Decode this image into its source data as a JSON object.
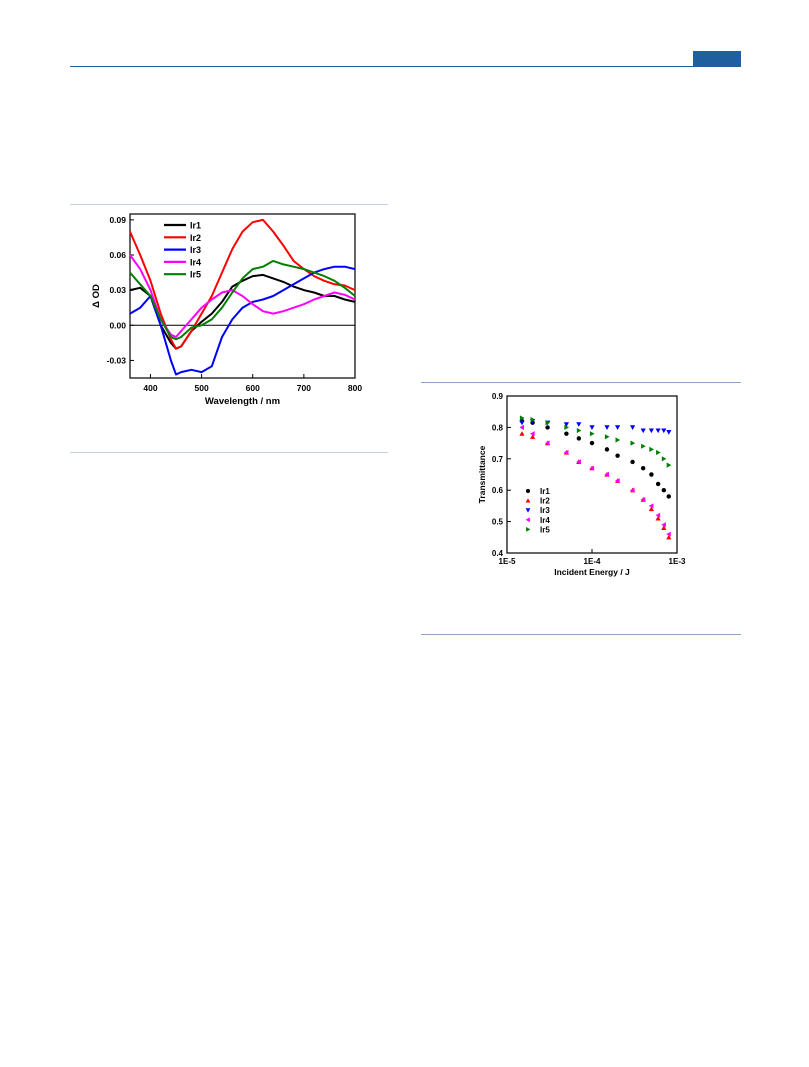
{
  "header": {
    "accent_color": "#1f5fa0"
  },
  "chart_data": [
    {
      "type": "line",
      "title": "",
      "xlabel": "Wavelength / nm",
      "ylabel": "Δ OD",
      "xlim": [
        360,
        800
      ],
      "ylim": [
        -0.045,
        0.095
      ],
      "xticks": [
        400,
        500,
        600,
        700,
        800
      ],
      "xtick_labels": [
        "400",
        "500",
        "600",
        "700",
        "800"
      ],
      "yticks": [
        -0.03,
        0.0,
        0.03,
        0.06,
        0.09
      ],
      "ytick_labels": [
        "-0.03",
        "0.00",
        "0.03",
        "0.06",
        "0.09"
      ],
      "zero_line": true,
      "grid": false,
      "legend_position": "top-left",
      "x": [
        360,
        380,
        400,
        420,
        440,
        450,
        460,
        480,
        500,
        520,
        540,
        560,
        580,
        600,
        620,
        640,
        660,
        680,
        700,
        720,
        740,
        760,
        780,
        800
      ],
      "series": [
        {
          "name": "Ir1",
          "color": "#000000",
          "values": [
            0.03,
            0.032,
            0.025,
            0.0,
            -0.015,
            -0.02,
            -0.018,
            -0.005,
            0.003,
            0.01,
            0.02,
            0.033,
            0.038,
            0.042,
            0.043,
            0.04,
            0.037,
            0.033,
            0.03,
            0.028,
            0.025,
            0.025,
            0.022,
            0.02
          ]
        },
        {
          "name": "Ir2",
          "color": "#ff0000",
          "values": [
            0.08,
            0.06,
            0.038,
            0.01,
            -0.012,
            -0.02,
            -0.018,
            -0.005,
            0.01,
            0.025,
            0.045,
            0.065,
            0.08,
            0.088,
            0.09,
            0.08,
            0.068,
            0.055,
            0.048,
            0.042,
            0.038,
            0.035,
            0.034,
            0.03
          ]
        },
        {
          "name": "Ir3",
          "color": "#0000ff",
          "values": [
            0.01,
            0.015,
            0.025,
            0.0,
            -0.03,
            -0.042,
            -0.04,
            -0.038,
            -0.04,
            -0.035,
            -0.01,
            0.005,
            0.015,
            0.02,
            0.022,
            0.025,
            0.03,
            0.035,
            0.04,
            0.045,
            0.048,
            0.05,
            0.05,
            0.048
          ]
        },
        {
          "name": "Ir4",
          "color": "#ff00ff",
          "values": [
            0.06,
            0.048,
            0.03,
            0.005,
            -0.008,
            -0.01,
            -0.005,
            0.005,
            0.015,
            0.022,
            0.028,
            0.03,
            0.025,
            0.018,
            0.012,
            0.01,
            0.012,
            0.015,
            0.018,
            0.022,
            0.025,
            0.028,
            0.026,
            0.022
          ]
        },
        {
          "name": "Ir5",
          "color": "#008000",
          "values": [
            0.045,
            0.035,
            0.025,
            0.005,
            -0.01,
            -0.012,
            -0.01,
            -0.002,
            0.0,
            0.005,
            0.015,
            0.028,
            0.04,
            0.048,
            0.05,
            0.055,
            0.052,
            0.05,
            0.048,
            0.045,
            0.042,
            0.038,
            0.032,
            0.025
          ]
        }
      ]
    },
    {
      "type": "scatter",
      "title": "",
      "xlabel": "Incident Energy / J",
      "ylabel": "Transmittance",
      "xscale": "log",
      "xlim": [
        1e-05,
        0.001
      ],
      "ylim": [
        0.4,
        0.9
      ],
      "xticks": [
        1e-05,
        0.0001,
        0.001
      ],
      "xtick_labels": [
        "1E-5",
        "1E-4",
        "1E-3"
      ],
      "yticks": [
        0.4,
        0.5,
        0.6,
        0.7,
        0.8,
        0.9
      ],
      "ytick_labels": [
        "0.4",
        "0.5",
        "0.6",
        "0.7",
        "0.8",
        "0.9"
      ],
      "grid": false,
      "legend_position": "bottom-left",
      "x": [
        1.5e-05,
        2e-05,
        3e-05,
        5e-05,
        7e-05,
        0.0001,
        0.00015,
        0.0002,
        0.0003,
        0.0004,
        0.0005,
        0.0006,
        0.0007,
        0.0008
      ],
      "series": [
        {
          "name": "Ir1",
          "color": "#000000",
          "marker": "circle",
          "values": [
            0.82,
            0.815,
            0.8,
            0.78,
            0.765,
            0.75,
            0.73,
            0.71,
            0.69,
            0.67,
            0.65,
            0.62,
            0.6,
            0.58
          ]
        },
        {
          "name": "Ir2",
          "color": "#ff0000",
          "marker": "triangle-up",
          "values": [
            0.78,
            0.77,
            0.75,
            0.72,
            0.69,
            0.67,
            0.65,
            0.63,
            0.6,
            0.57,
            0.54,
            0.51,
            0.48,
            0.45
          ]
        },
        {
          "name": "Ir3",
          "color": "#0000ff",
          "marker": "triangle-down",
          "values": [
            0.815,
            0.82,
            0.815,
            0.81,
            0.81,
            0.8,
            0.8,
            0.8,
            0.8,
            0.79,
            0.79,
            0.79,
            0.79,
            0.785
          ]
        },
        {
          "name": "Ir4",
          "color": "#ff00ff",
          "marker": "triangle-left",
          "values": [
            0.8,
            0.78,
            0.75,
            0.72,
            0.69,
            0.67,
            0.65,
            0.63,
            0.6,
            0.57,
            0.55,
            0.52,
            0.49,
            0.46
          ]
        },
        {
          "name": "Ir5",
          "color": "#008000",
          "marker": "triangle-right",
          "values": [
            0.83,
            0.825,
            0.815,
            0.8,
            0.79,
            0.78,
            0.77,
            0.76,
            0.75,
            0.74,
            0.73,
            0.72,
            0.7,
            0.68
          ]
        }
      ]
    }
  ]
}
